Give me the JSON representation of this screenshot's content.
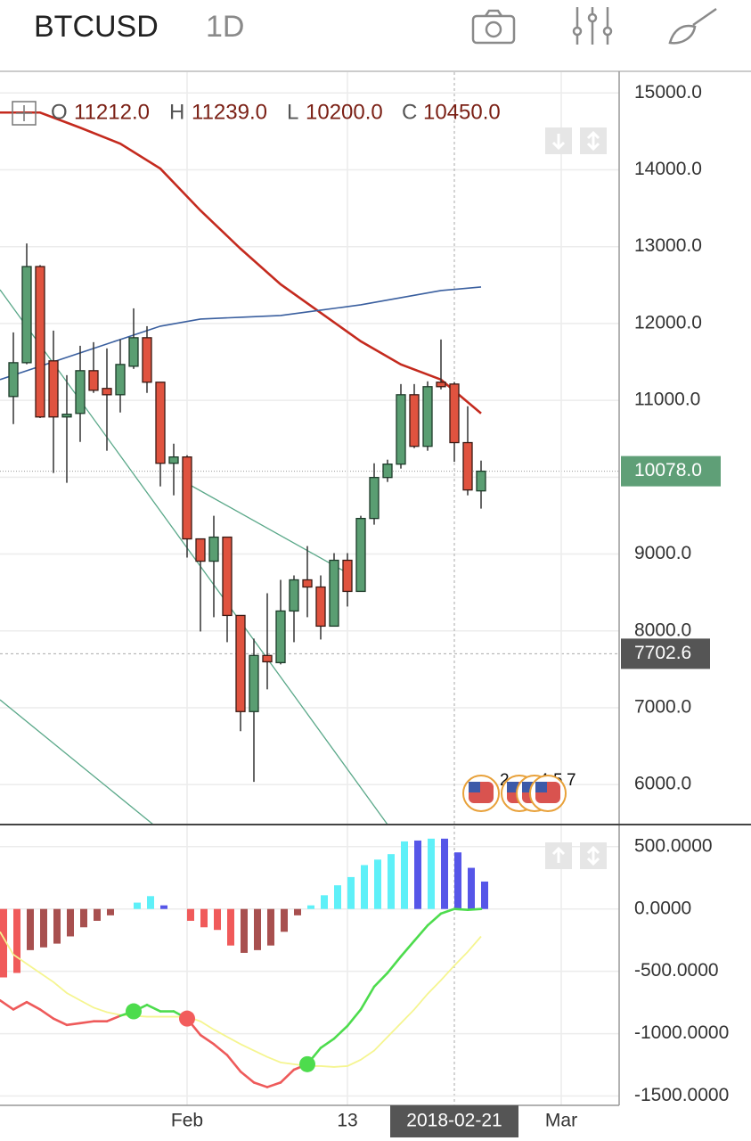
{
  "header": {
    "symbol": "BTCUSD",
    "interval": "1D"
  },
  "chart_data": [
    {
      "type": "candlestick",
      "x": [
        "2018-01-19",
        "2018-01-20",
        "2018-01-21",
        "2018-01-22",
        "2018-01-23",
        "2018-01-24",
        "2018-01-25",
        "2018-01-26",
        "2018-01-27",
        "2018-01-28",
        "2018-01-29",
        "2018-01-30",
        "2018-01-31",
        "2018-02-01",
        "2018-02-02",
        "2018-02-03",
        "2018-02-04",
        "2018-02-05",
        "2018-02-06",
        "2018-02-07",
        "2018-02-08",
        "2018-02-09",
        "2018-02-10",
        "2018-02-11",
        "2018-02-12",
        "2018-02-13",
        "2018-02-14",
        "2018-02-15",
        "2018-02-16",
        "2018-02-17",
        "2018-02-18",
        "2018-02-19",
        "2018-02-20",
        "2018-02-21",
        "2018-02-22",
        "2018-02-23"
      ],
      "open": [
        11050,
        11490,
        12741,
        11514,
        10784,
        10830,
        11386,
        11155,
        11073,
        11444,
        11815,
        11236,
        10181,
        10263,
        9197,
        8907,
        9220,
        8201,
        6950,
        7680,
        7587,
        8259,
        8664,
        8571,
        8062,
        8919,
        8514,
        9463,
        9996,
        10170,
        11073,
        10402,
        11236,
        11212,
        10450,
        9822
      ],
      "high": [
        11884,
        13042,
        12760,
        11907,
        11328,
        11710,
        11757,
        11676,
        11792,
        12197,
        11965,
        11236,
        10436,
        10286,
        9197,
        9498,
        9220,
        8201,
        7900,
        8490,
        8664,
        8722,
        9104,
        8722,
        9012,
        9012,
        9498,
        10181,
        10228,
        11212,
        11212,
        11247,
        11792,
        11239,
        10923,
        10216
      ],
      "low": [
        10691,
        11470,
        10770,
        10054,
        9927,
        10459,
        11097,
        10344,
        10842,
        11409,
        11097,
        9880,
        9764,
        8954,
        7992,
        8178,
        7853,
        6695,
        6035,
        7239,
        7564,
        7853,
        8178,
        7888,
        8062,
        8317,
        8514,
        9382,
        9938,
        10112,
        10378,
        10344,
        11143,
        10200,
        9764,
        9591
      ],
      "close": [
        11490,
        12741,
        10784,
        10784,
        10819,
        11386,
        11131,
        11073,
        11467,
        11815,
        11236,
        10181,
        10263,
        9197,
        8907,
        9220,
        8201,
        6950,
        7680,
        7598,
        8259,
        8664,
        8571,
        8062,
        8919,
        8514,
        9463,
        9996,
        10170,
        11073,
        10402,
        11178,
        11178,
        10450,
        9834,
        10078
      ],
      "up_color": "#5a9e72",
      "down_color": "#e0533f",
      "lines": [
        {
          "color": "#c42a1e",
          "x": [
            "2018-01-18",
            "2018-01-21",
            "2018-01-24",
            "2018-01-27",
            "2018-01-30",
            "2018-02-02",
            "2018-02-05",
            "2018-02-08",
            "2018-02-11",
            "2018-02-14",
            "2018-02-17",
            "2018-02-20",
            "2018-02-23"
          ],
          "values": [
            14745,
            14745,
            14548,
            14340,
            14015,
            13471,
            12973,
            12510,
            12139,
            11768,
            11467,
            11270,
            10830
          ]
        },
        {
          "color": "#3a5f9f",
          "x": [
            "2018-01-18",
            "2018-01-21",
            "2018-01-24",
            "2018-01-27",
            "2018-01-30",
            "2018-02-02",
            "2018-02-05",
            "2018-02-08",
            "2018-02-11",
            "2018-02-14",
            "2018-02-17",
            "2018-02-20",
            "2018-02-23"
          ],
          "values": [
            11270,
            11444,
            11618,
            11792,
            11965,
            12058,
            12081,
            12104,
            12174,
            12243,
            12336,
            12429,
            12475
          ]
        }
      ],
      "xlim": [
        "2018-01-18",
        "2018-03-05"
      ],
      "ylim": [
        5480,
        15270
      ],
      "yticks": [
        {
          "value": 6000,
          "label": "6000.0"
        },
        {
          "value": 7000,
          "label": "7000.0"
        },
        {
          "value": 8000,
          "label": "8000.0"
        },
        {
          "value": 9000,
          "label": "9000.0"
        },
        {
          "value": 10000,
          "label": "10000.0"
        },
        {
          "value": 11000,
          "label": "11000.0"
        },
        {
          "value": 12000,
          "label": "12000.0"
        },
        {
          "value": 13000,
          "label": "13000.0"
        },
        {
          "value": 14000,
          "label": "14000.0"
        },
        {
          "value": 15000,
          "label": "15000.0"
        }
      ],
      "grid": true,
      "last_price": {
        "value": 10078,
        "label": "10078.0",
        "color": "#5f9f77"
      },
      "crosshair": {
        "x": "2018-02-21",
        "y": 7702.6,
        "ohlc": {
          "labels": [
            "O",
            "H",
            "L",
            "C"
          ],
          "values": [
            11212,
            11239,
            10200,
            10450
          ],
          "value_labels": [
            "11212.0",
            "11239.0",
            "10200.0",
            "10450.0"
          ]
        }
      },
      "events": [
        "2",
        "4",
        "5",
        "7"
      ]
    },
    {
      "type": "macd",
      "x": [
        "2018-01-18",
        "2018-01-19",
        "2018-01-20",
        "2018-01-21",
        "2018-01-22",
        "2018-01-23",
        "2018-01-24",
        "2018-01-25",
        "2018-01-26",
        "2018-01-27",
        "2018-01-28",
        "2018-01-29",
        "2018-01-30",
        "2018-01-31",
        "2018-02-01",
        "2018-02-02",
        "2018-02-03",
        "2018-02-04",
        "2018-02-05",
        "2018-02-06",
        "2018-02-07",
        "2018-02-08",
        "2018-02-09",
        "2018-02-10",
        "2018-02-11",
        "2018-02-12",
        "2018-02-13",
        "2018-02-14",
        "2018-02-15",
        "2018-02-16",
        "2018-02-17",
        "2018-02-18",
        "2018-02-19",
        "2018-02-20",
        "2018-02-21",
        "2018-02-22",
        "2018-02-23"
      ],
      "histogram": {
        "values": [
          -549,
          -513,
          -330,
          -308,
          -278,
          -220,
          -147,
          -95,
          -51,
          0,
          51,
          103,
          29,
          0,
          -95,
          -147,
          -168,
          -293,
          -352,
          -330,
          -293,
          -183,
          -51,
          29,
          110,
          190,
          256,
          352,
          396,
          440,
          542,
          549,
          564,
          564,
          454,
          330,
          220
        ],
        "colors": [
          "#f05a5a",
          "#f05a5a",
          "#a8504f",
          "#a8504f",
          "#a8504f",
          "#a8504f",
          "#a8504f",
          "#a8504f",
          "#a8504f",
          "#a8504f",
          "#5ef0f8",
          "#5ef0f8",
          "#5656e8",
          "#5656e8",
          "#f05a5a",
          "#f05a5a",
          "#f05a5a",
          "#f05a5a",
          "#a8504f",
          "#a8504f",
          "#a8504f",
          "#a8504f",
          "#a8504f",
          "#5ef0f8",
          "#5ef0f8",
          "#5ef0f8",
          "#5ef0f8",
          "#5ef0f8",
          "#5ef0f8",
          "#5ef0f8",
          "#5ef0f8",
          "#5656e8",
          "#5ef0f8",
          "#5656e8",
          "#5656e8",
          "#5656e8",
          "#5656e8"
        ]
      },
      "macd": {
        "values": [
          -733,
          -806,
          -747,
          -806,
          -879,
          -930,
          -916,
          -901,
          -901,
          -857,
          -821,
          -769,
          -821,
          -821,
          -879,
          -1011,
          -1084,
          -1172,
          -1304,
          -1392,
          -1429,
          -1392,
          -1289,
          -1245,
          -1114,
          -1040,
          -938,
          -806,
          -623,
          -513,
          -381,
          -256,
          -132,
          -37,
          0,
          -7,
          0
        ],
        "color_up": "#4ddc4d",
        "color_down": "#ee5a5a"
      },
      "signal": {
        "values": [
          -183,
          -366,
          -440,
          -513,
          -586,
          -674,
          -733,
          -791,
          -828,
          -850,
          -857,
          -864,
          -864,
          -864,
          -864,
          -901,
          -967,
          -1026,
          -1084,
          -1136,
          -1187,
          -1231,
          -1245,
          -1260,
          -1260,
          -1267,
          -1260,
          -1209,
          -1136,
          -1026,
          -916,
          -806,
          -681,
          -571,
          -454,
          -344,
          -220
        ],
        "color": "#f5f590"
      },
      "markers": [
        {
          "x": "2018-01-28",
          "color": "#4ddc4d"
        },
        {
          "x": "2018-02-01",
          "color": "#f25c5c"
        },
        {
          "x": "2018-02-10",
          "color": "#4ddc4d"
        }
      ],
      "xlim": [
        "2018-01-18",
        "2018-03-05"
      ],
      "ylim": [
        -1575,
        670
      ],
      "yticks": [
        {
          "value": 500,
          "label": "500.0000"
        },
        {
          "value": 0,
          "label": "0.0000"
        },
        {
          "value": -500,
          "label": "-500.0000"
        },
        {
          "value": -1000,
          "label": "-1000.0000"
        },
        {
          "value": -1500,
          "label": "-1500.0000"
        }
      ],
      "xticks": [
        {
          "value": "2018-02-01",
          "label": "Feb"
        },
        {
          "value": "2018-02-13",
          "label": "13"
        },
        {
          "value": "2018-03-01",
          "label": "Mar"
        }
      ],
      "grid": true
    }
  ]
}
